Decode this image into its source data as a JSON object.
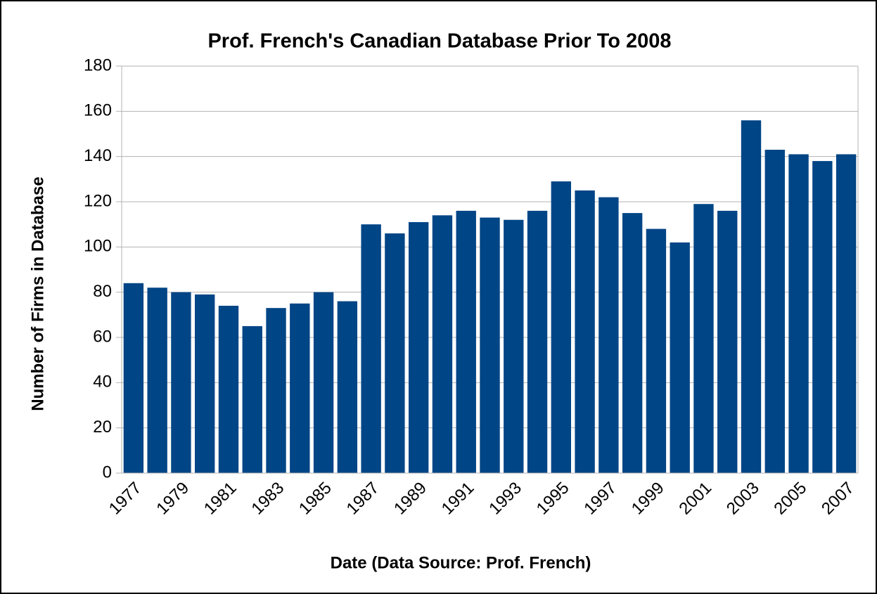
{
  "chart_data": {
    "type": "bar",
    "title": "Prof. French's Canadian Database Prior To 2008",
    "x_label": "Date (Data Source: Prof. French)",
    "y_label": "Number of Firms in Database",
    "categories": [
      "1977",
      null,
      "1979",
      null,
      "1981",
      null,
      "1983",
      null,
      "1985",
      null,
      "1987",
      null,
      "1989",
      null,
      "1991",
      null,
      "1993",
      null,
      "1995",
      null,
      "1997",
      null,
      "1999",
      null,
      "2001",
      null,
      "2003",
      null,
      "2005",
      null,
      "2007"
    ],
    "values": [
      84,
      82,
      80,
      79,
      74,
      65,
      73,
      75,
      80,
      76,
      110,
      106,
      111,
      114,
      116,
      113,
      112,
      116,
      129,
      125,
      122,
      115,
      108,
      102,
      119,
      116,
      156,
      143,
      141,
      138,
      141
    ],
    "color": "#004586",
    "ylim": [
      0,
      180
    ],
    "yticks": [
      0,
      20,
      40,
      60,
      80,
      100,
      120,
      140,
      160,
      180
    ],
    "grid": true
  }
}
